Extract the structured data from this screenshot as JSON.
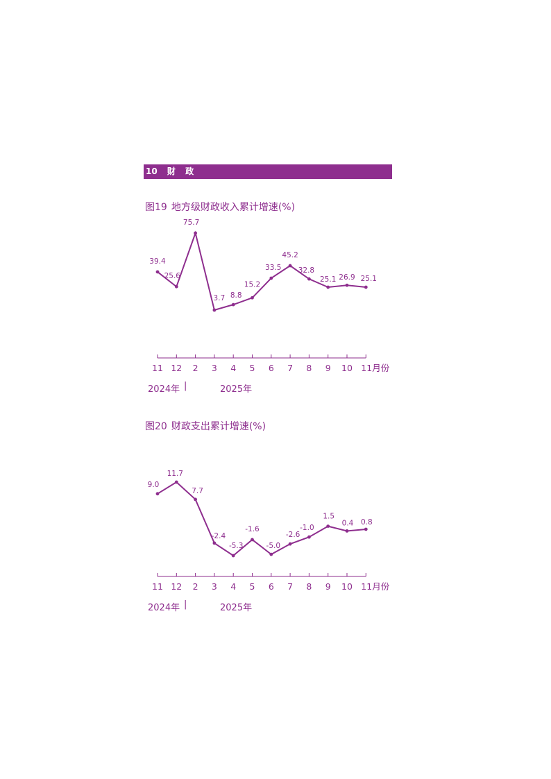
{
  "section": {
    "number": "10",
    "title_chars": [
      "财",
      "政"
    ]
  },
  "charts": [
    {
      "fig_number": "图19",
      "fig_title": "地方级财政收入累计增速(%)",
      "year_left": "2024年",
      "year_right": "2025年",
      "separator": "|"
    },
    {
      "fig_number": "图20",
      "fig_title": "财政支出累计增速(%)",
      "year_left": "2024年",
      "year_right": "2025年",
      "separator": "|"
    }
  ],
  "colors": {
    "accent": "#8e2e8e"
  },
  "chart_data": [
    {
      "type": "line",
      "title": "图19 地方级财政收入累计增速(%)",
      "categories": [
        "11",
        "12",
        "2",
        "3",
        "4",
        "5",
        "6",
        "7",
        "8",
        "9",
        "10",
        "11月份"
      ],
      "values": [
        39.4,
        25.6,
        75.7,
        3.7,
        8.8,
        15.2,
        33.5,
        45.2,
        32.8,
        25.1,
        26.9,
        25.1
      ],
      "labels": [
        "39.4",
        "25.6",
        "75.7",
        "3.7",
        "8.8",
        "15.2",
        "33.5",
        "45.2",
        "32.8",
        "25.1",
        "26.9",
        "25.1"
      ],
      "ylim": [
        -30,
        80
      ],
      "grid": false,
      "legend": "none"
    },
    {
      "type": "line",
      "title": "图20 财政支出累计增速(%)",
      "categories": [
        "11",
        "12",
        "2",
        "3",
        "4",
        "5",
        "6",
        "7",
        "8",
        "9",
        "10",
        "11月份"
      ],
      "values": [
        9.0,
        11.7,
        7.7,
        -2.4,
        -5.3,
        -1.6,
        -5.0,
        -2.6,
        -1.0,
        1.5,
        0.4,
        0.8
      ],
      "labels": [
        "9.0",
        "11.7",
        "7.7",
        "-2.4",
        "-5.3",
        "-1.6",
        "-5.0",
        "-2.6",
        "-1.0",
        "1.5",
        "0.4",
        "0.8"
      ],
      "ylim": [
        -10,
        12
      ],
      "grid": false,
      "legend": "none"
    }
  ]
}
